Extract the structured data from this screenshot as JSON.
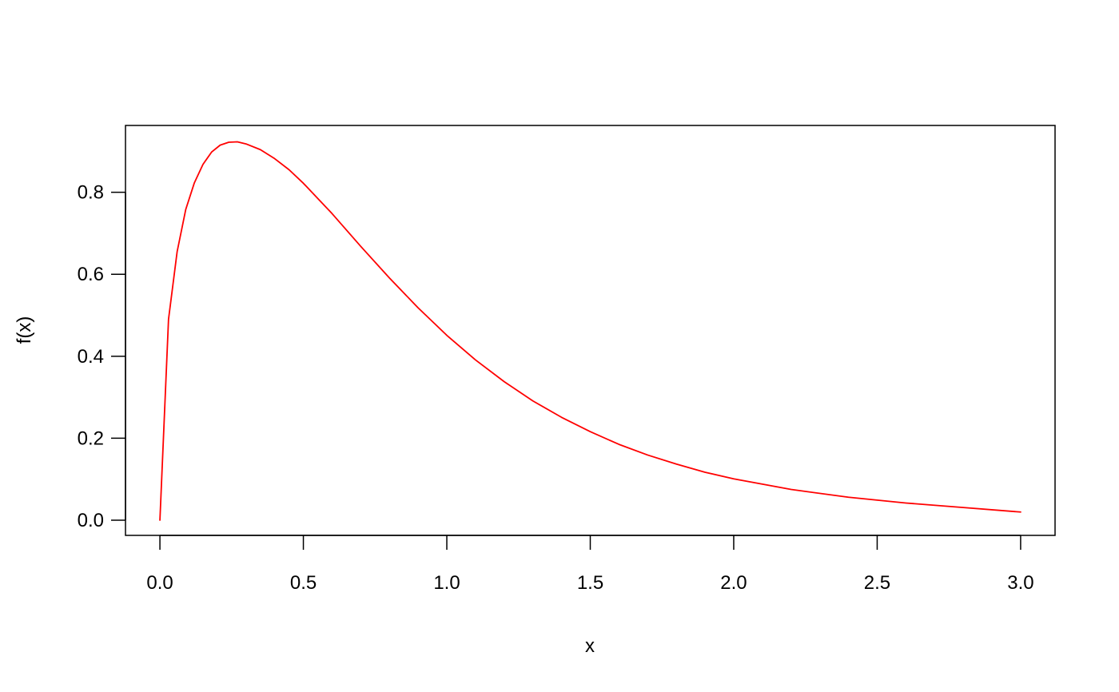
{
  "chart_data": {
    "type": "line",
    "title": "",
    "xlabel": "x",
    "ylabel": "f(x)",
    "xlim": [
      -0.12,
      3.12
    ],
    "ylim": [
      -0.037,
      0.963
    ],
    "x_ticks": [
      0.0,
      0.5,
      1.0,
      1.5,
      2.0,
      2.5,
      3.0
    ],
    "x_tick_labels": [
      "0.0",
      "0.5",
      "1.0",
      "1.5",
      "2.0",
      "2.5",
      "3.0"
    ],
    "y_ticks": [
      0.0,
      0.2,
      0.4,
      0.6,
      0.8
    ],
    "y_tick_labels": [
      "0.0",
      "0.2",
      "0.4",
      "0.6",
      "0.8"
    ],
    "grid": false,
    "legend": "none",
    "line_color": "#ff0000",
    "series": [
      {
        "x": [
          0.0,
          0.03,
          0.06,
          0.09,
          0.12,
          0.15,
          0.18,
          0.21,
          0.24,
          0.27,
          0.3,
          0.35,
          0.4,
          0.45,
          0.5,
          0.6,
          0.7,
          0.8,
          0.9,
          1.0,
          1.1,
          1.2,
          1.3,
          1.4,
          1.5,
          1.6,
          1.7,
          1.8,
          1.9,
          2.0,
          2.2,
          2.4,
          2.6,
          2.8,
          3.0
        ],
        "y": [
          0.0,
          0.49,
          0.655,
          0.758,
          0.823,
          0.868,
          0.898,
          0.915,
          0.922,
          0.923,
          0.918,
          0.904,
          0.882,
          0.855,
          0.822,
          0.748,
          0.668,
          0.591,
          0.518,
          0.451,
          0.391,
          0.338,
          0.291,
          0.251,
          0.216,
          0.185,
          0.159,
          0.137,
          0.117,
          0.101,
          0.075,
          0.056,
          0.042,
          0.031,
          0.02
        ]
      }
    ]
  }
}
